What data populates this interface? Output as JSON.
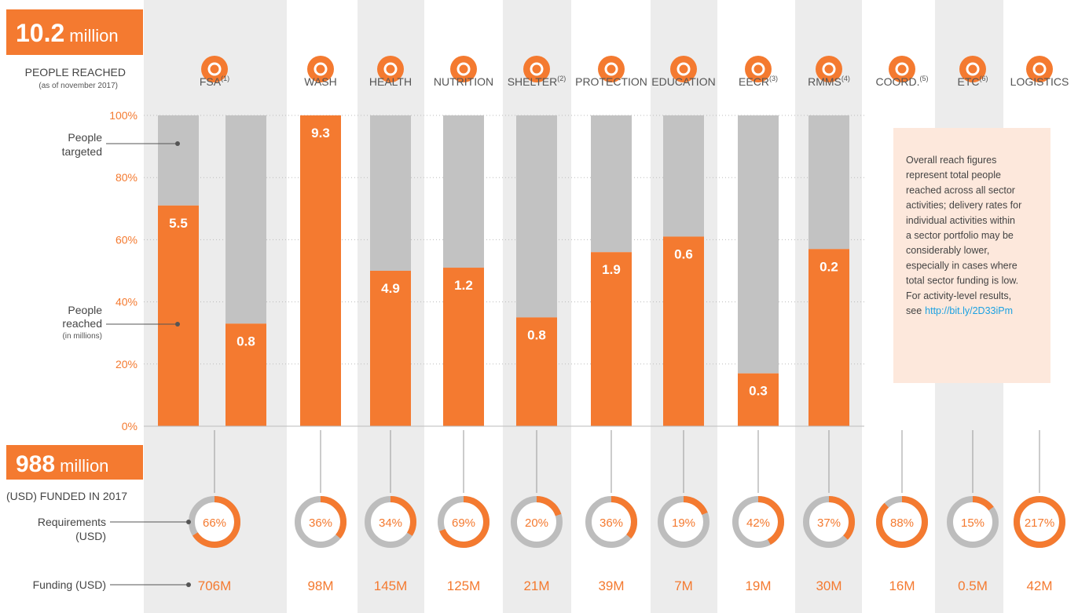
{
  "header": {
    "reached_number": "10.2",
    "reached_unit": "million",
    "reached_caption": "PEOPLE REACHED",
    "reached_note": "(as of november 2017)",
    "funded_number": "988",
    "funded_unit": "million",
    "funded_caption": "(USD) FUNDED IN 2017"
  },
  "chart_data": {
    "type": "bar",
    "sectors": [
      {
        "name": "FSA",
        "note": "(1)"
      },
      {
        "name": "WASH"
      },
      {
        "name": "HEALTH"
      },
      {
        "name": "NUTRITION"
      },
      {
        "name": "SHELTER",
        "note": "(2)"
      },
      {
        "name": "PROTECTION"
      },
      {
        "name": "EDUCATION"
      },
      {
        "name": "EECR",
        "note": "(3)"
      },
      {
        "name": "RMMS",
        "note": "(4)"
      },
      {
        "name": "COORD.",
        "note": "(5)"
      },
      {
        "name": "ETC",
        "note": "(6)"
      },
      {
        "name": "LOGISTICS"
      }
    ],
    "ylim": [
      0,
      100
    ],
    "yticks": [
      {
        "value": 0,
        "label": "0%"
      },
      {
        "value": 20,
        "label": "20%"
      },
      {
        "value": 40,
        "label": "40%"
      },
      {
        "value": 60,
        "label": "60%"
      },
      {
        "value": 80,
        "label": "80%"
      },
      {
        "value": 100,
        "label": "100%"
      }
    ],
    "grid": true,
    "series": [
      {
        "name": "People reached",
        "color": "#f47a30",
        "values": [
          71,
          33,
          100,
          50,
          51,
          35,
          56,
          61,
          17,
          57
        ]
      }
    ],
    "reached_millions": [
      5.5,
      0.8,
      9.3,
      4.9,
      1.2,
      0.8,
      1.9,
      0.6,
      0.3,
      0.2
    ],
    "target_color": "#c2c2c2",
    "funded_pct": [
      66,
      36,
      34,
      69,
      20,
      36,
      19,
      42,
      37,
      88,
      15,
      217
    ],
    "funded_pct_labels": [
      "66%",
      "36%",
      "34%",
      "69%",
      "20%",
      "36%",
      "19%",
      "42%",
      "37%",
      "88%",
      "15%",
      "217%"
    ],
    "funding": [
      "706M",
      "98M",
      "145M",
      "125M",
      "21M",
      "39M",
      "7M",
      "19M",
      "30M",
      "16M",
      "0.5M",
      "42M"
    ],
    "annotations": {
      "targeted": [
        "People",
        "targeted"
      ],
      "reached": [
        "People",
        "reached"
      ],
      "reached_unit": "(in millions)",
      "requirements": [
        "Requirements",
        "(USD)"
      ],
      "funding": "Funding (USD)"
    }
  },
  "note": {
    "lines": [
      "Overall reach figures",
      "represent total people",
      "reached across all sector",
      "activities; delivery rates for",
      "individual activities within",
      "a sector portfolio may be",
      "considerably lower,",
      "especially in cases where",
      "total sector funding is low.",
      "For activity-level results,"
    ],
    "last": "see",
    "link": "http://bit.ly/2D33iPm"
  }
}
